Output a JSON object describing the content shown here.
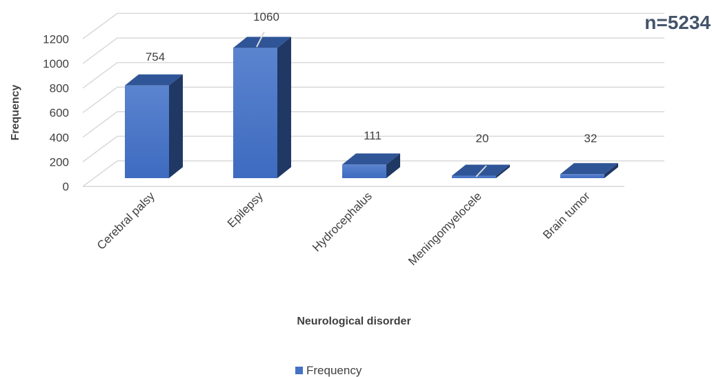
{
  "chart_data": {
    "type": "bar",
    "style": "3d-column",
    "categories": [
      "Cerebral palsy",
      "Epilepsy",
      "Hydrocephalus",
      "Meningomyelocele",
      "Brain tumor"
    ],
    "series": [
      {
        "name": "Frequency",
        "values": [
          754,
          1060,
          111,
          20,
          32
        ]
      }
    ],
    "data_labels": [
      "754",
      "1060",
      "111",
      "20",
      "32"
    ],
    "xlabel": "Neurological disorder",
    "ylabel": "Frequency",
    "ylim": [
      0,
      1200
    ],
    "yticks": [
      "0",
      "200",
      "400",
      "600",
      "800",
      "1000",
      "1200"
    ],
    "annotation": "n=5234",
    "grid": true,
    "legend_position": "bottom",
    "colors": {
      "bar_front": "#4472c4",
      "bar_top": "#2f5597",
      "bar_side": "#203864",
      "grid": "#d9d9d9"
    }
  }
}
